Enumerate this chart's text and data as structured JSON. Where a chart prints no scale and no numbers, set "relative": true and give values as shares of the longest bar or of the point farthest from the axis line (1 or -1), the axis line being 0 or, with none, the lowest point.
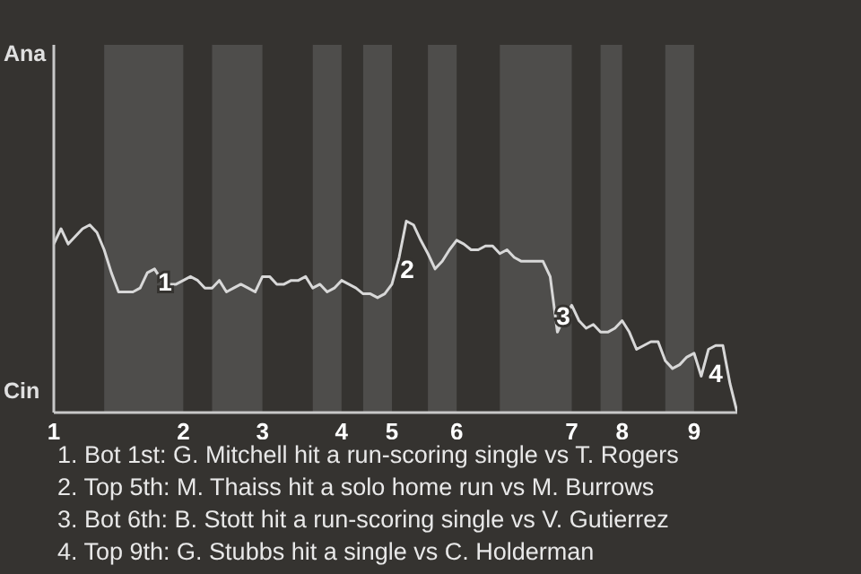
{
  "chart_data": {
    "type": "line",
    "relative": true,
    "categories": [
      "1",
      null,
      null,
      null,
      null,
      null,
      null,
      null,
      null,
      null,
      null,
      null,
      null,
      null,
      null,
      null,
      null,
      null,
      "2",
      null,
      null,
      null,
      null,
      null,
      null,
      null,
      null,
      null,
      null,
      "3",
      null,
      null,
      null,
      null,
      null,
      null,
      null,
      null,
      null,
      null,
      "4",
      null,
      null,
      null,
      null,
      null,
      null,
      "5",
      null,
      null,
      null,
      null,
      null,
      null,
      null,
      null,
      "6",
      null,
      null,
      null,
      null,
      null,
      null,
      null,
      null,
      null,
      null,
      null,
      null,
      null,
      null,
      null,
      "7",
      null,
      null,
      null,
      null,
      null,
      null,
      "8",
      null,
      null,
      null,
      null,
      null,
      null,
      null,
      null,
      null,
      "9",
      null,
      null,
      null,
      null,
      null,
      null
    ],
    "values": [
      0.88,
      0.96,
      0.88,
      0.92,
      0.96,
      0.98,
      0.94,
      0.85,
      0.73,
      0.63,
      0.63,
      0.63,
      0.65,
      0.73,
      0.75,
      0.69,
      0.67,
      0.67,
      0.69,
      0.71,
      0.69,
      0.65,
      0.65,
      0.69,
      0.63,
      0.65,
      0.67,
      0.65,
      0.63,
      0.71,
      0.71,
      0.67,
      0.67,
      0.69,
      0.69,
      0.71,
      0.65,
      0.67,
      0.63,
      0.65,
      0.69,
      0.67,
      0.65,
      0.62,
      0.62,
      0.6,
      0.62,
      0.67,
      0.81,
      1,
      0.98,
      0.9,
      0.83,
      0.75,
      0.79,
      0.85,
      0.9,
      0.88,
      0.85,
      0.85,
      0.87,
      0.87,
      0.83,
      0.85,
      0.81,
      0.79,
      0.79,
      0.79,
      0.79,
      0.71,
      0.42,
      0.5,
      0.56,
      0.48,
      0.44,
      0.46,
      0.42,
      0.42,
      0.44,
      0.48,
      0.42,
      0.33,
      0.35,
      0.37,
      0.37,
      0.27,
      0.23,
      0.25,
      0.29,
      0.31,
      0.19,
      0.33,
      0.35,
      0.35,
      0.15,
      0
    ],
    "color": "#d8d8d8",
    "annotations": [
      "Ana",
      "Cin",
      "1",
      "2",
      "3",
      "4",
      "1. Bot 1st: G. Mitchell hit a run-scoring single vs T. Rogers",
      "2. Top 5th: M. Thaiss hit a solo home run vs M. Burrows",
      "3. Bot 6th: B. Stott hit a run-scoring single vs V. Gutierrez",
      "4. Top 9th: G. Stubbs hit a single vs C. Holderman"
    ]
  }
}
